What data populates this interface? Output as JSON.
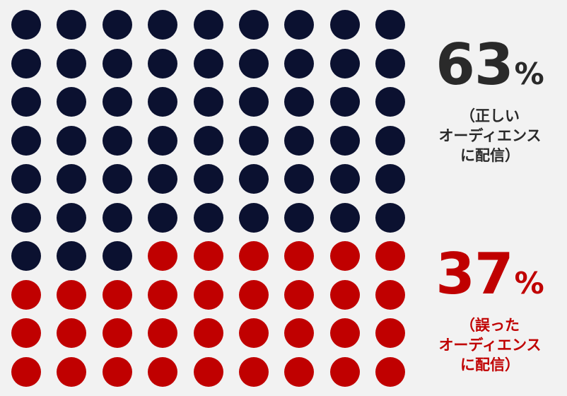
{
  "chart_data": {
    "type": "waffle",
    "rows": 10,
    "columns": 9,
    "series": [
      {
        "value": 63,
        "color": "#0b1130"
      },
      {
        "value": 37,
        "color": "#c00000"
      }
    ]
  },
  "stats": {
    "correct": {
      "number": "63",
      "unit": "%",
      "caption_line1": "（正しい",
      "caption_line2": "オーディエンス",
      "caption_line3": "に配信）"
    },
    "wrong": {
      "number": "37",
      "unit": "%",
      "caption_line1": "（誤った",
      "caption_line2": "オーディエンス",
      "caption_line3": "に配信）"
    }
  }
}
